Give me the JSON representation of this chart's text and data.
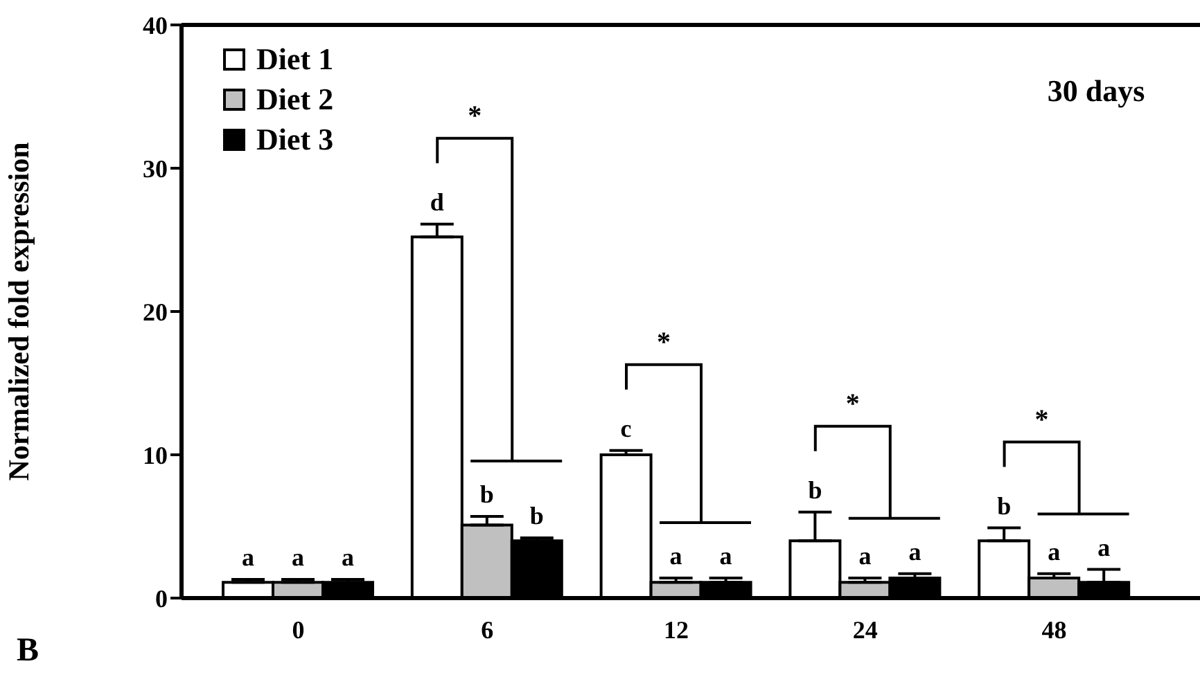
{
  "chart_data": {
    "type": "bar",
    "ylabel": "Normalized fold expression",
    "categories": [
      "0",
      "6",
      "12",
      "24",
      "48"
    ],
    "series": [
      {
        "name": "Diet 1",
        "color": "#ffffff",
        "values": [
          1.1,
          25.2,
          10.0,
          4.0,
          4.0
        ],
        "errors": [
          [
            1.1,
            1.3
          ],
          [
            25.2,
            26.1
          ],
          [
            10.0,
            10.3
          ],
          [
            4.0,
            6.0
          ],
          [
            4.0,
            4.9
          ]
        ],
        "value_labels": [
          "a",
          "d",
          "c",
          "b",
          "b"
        ]
      },
      {
        "name": "Diet 2",
        "color": "#c0c0c0",
        "values": [
          1.1,
          5.1,
          1.1,
          1.1,
          1.4
        ],
        "errors": [
          [
            1.1,
            1.3
          ],
          [
            5.1,
            5.7
          ],
          [
            1.1,
            1.4
          ],
          [
            1.1,
            1.4
          ],
          [
            1.4,
            1.7
          ]
        ],
        "value_labels": [
          "a",
          "b",
          "a",
          "a",
          "a"
        ]
      },
      {
        "name": "Diet 3",
        "color": "#000000",
        "values": [
          1.1,
          4.0,
          1.1,
          1.4,
          1.1
        ],
        "errors": [
          [
            1.1,
            1.3
          ],
          [
            4.0,
            4.2
          ],
          [
            1.1,
            1.4
          ],
          [
            1.4,
            1.7
          ],
          [
            1.1,
            2.0
          ]
        ],
        "value_labels": [
          "a",
          "b",
          "a",
          "a",
          "a"
        ]
      }
    ],
    "ylim": [
      0,
      40
    ],
    "yticks": [
      0,
      10,
      20,
      30,
      40
    ],
    "grid": false,
    "legend": "top left",
    "annotations": [
      "30 days",
      "B",
      "*",
      "*",
      "*",
      "*"
    ]
  }
}
